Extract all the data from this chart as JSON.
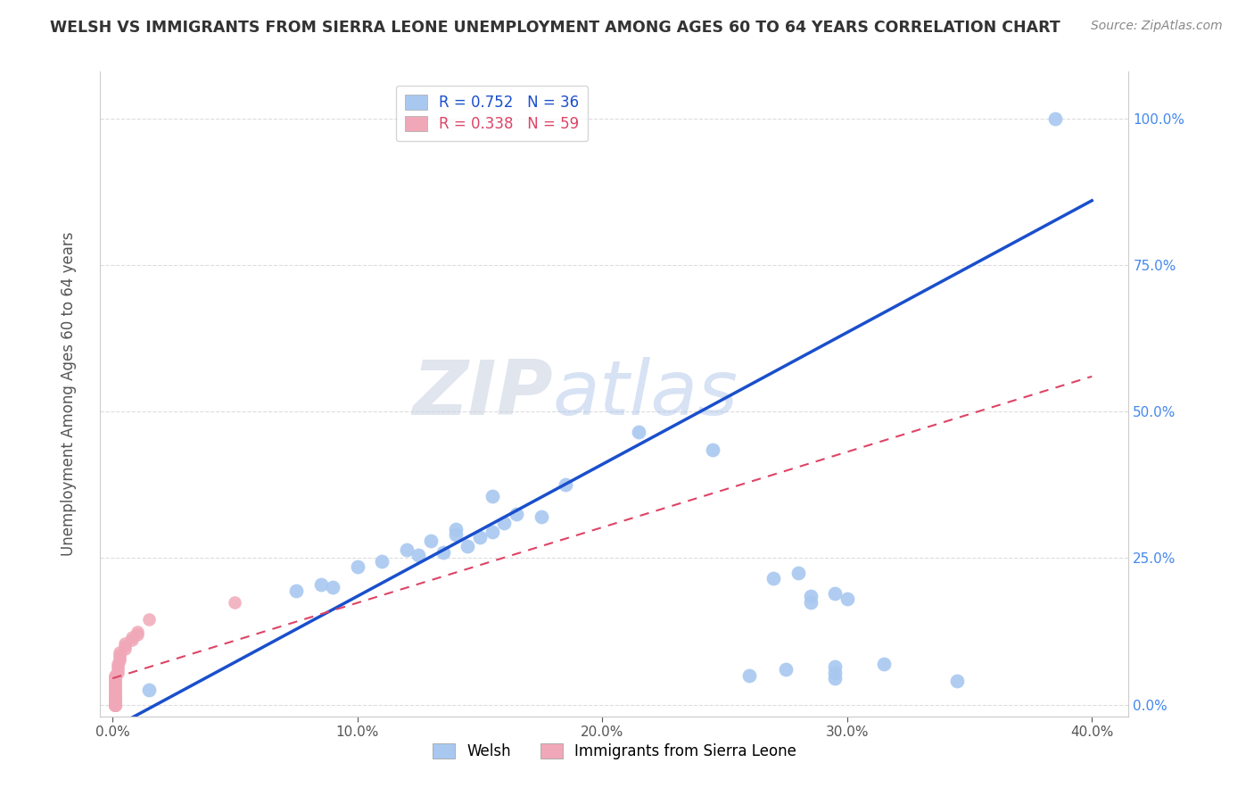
{
  "title": "WELSH VS IMMIGRANTS FROM SIERRA LEONE UNEMPLOYMENT AMONG AGES 60 TO 64 YEARS CORRELATION CHART",
  "source": "Source: ZipAtlas.com",
  "xlabel_ticks": [
    "0.0%",
    "10.0%",
    "20.0%",
    "30.0%",
    "40.0%"
  ],
  "xlabel_tick_vals": [
    0.0,
    0.1,
    0.2,
    0.3,
    0.4
  ],
  "ylabel_ticks": [
    "0.0%",
    "25.0%",
    "50.0%",
    "75.0%",
    "100.0%"
  ],
  "ylabel_tick_vals": [
    0.0,
    0.25,
    0.5,
    0.75,
    1.0
  ],
  "ylabel_label": "Unemployment Among Ages 60 to 64 years",
  "welsh_R": 0.752,
  "welsh_N": 36,
  "sierra_leone_R": 0.338,
  "sierra_leone_N": 59,
  "welsh_color": "#a8c8f0",
  "welsh_line_color": "#1a4fcc",
  "sierra_leone_color": "#f0a8b8",
  "sierra_leone_line_color": "#dd4466",
  "watermark_zip": "ZIP",
  "watermark_atlas": "atlas",
  "welsh_points": [
    [
      0.385,
      1.0
    ],
    [
      0.215,
      0.465
    ],
    [
      0.245,
      0.435
    ],
    [
      0.185,
      0.375
    ],
    [
      0.155,
      0.355
    ],
    [
      0.165,
      0.325
    ],
    [
      0.175,
      0.32
    ],
    [
      0.16,
      0.31
    ],
    [
      0.14,
      0.3
    ],
    [
      0.155,
      0.295
    ],
    [
      0.14,
      0.29
    ],
    [
      0.15,
      0.285
    ],
    [
      0.13,
      0.28
    ],
    [
      0.145,
      0.27
    ],
    [
      0.12,
      0.265
    ],
    [
      0.135,
      0.26
    ],
    [
      0.125,
      0.255
    ],
    [
      0.11,
      0.245
    ],
    [
      0.1,
      0.235
    ],
    [
      0.28,
      0.225
    ],
    [
      0.27,
      0.215
    ],
    [
      0.085,
      0.205
    ],
    [
      0.09,
      0.2
    ],
    [
      0.075,
      0.195
    ],
    [
      0.295,
      0.19
    ],
    [
      0.285,
      0.185
    ],
    [
      0.3,
      0.18
    ],
    [
      0.285,
      0.175
    ],
    [
      0.315,
      0.07
    ],
    [
      0.295,
      0.065
    ],
    [
      0.275,
      0.06
    ],
    [
      0.295,
      0.055
    ],
    [
      0.26,
      0.05
    ],
    [
      0.295,
      0.045
    ],
    [
      0.345,
      0.04
    ],
    [
      0.015,
      0.025
    ]
  ],
  "sierra_leone_points": [
    [
      0.05,
      0.175
    ],
    [
      0.015,
      0.145
    ],
    [
      0.01,
      0.125
    ],
    [
      0.01,
      0.12
    ],
    [
      0.008,
      0.115
    ],
    [
      0.008,
      0.11
    ],
    [
      0.005,
      0.105
    ],
    [
      0.005,
      0.1
    ],
    [
      0.005,
      0.095
    ],
    [
      0.003,
      0.09
    ],
    [
      0.003,
      0.085
    ],
    [
      0.003,
      0.08
    ],
    [
      0.003,
      0.075
    ],
    [
      0.002,
      0.07
    ],
    [
      0.002,
      0.065
    ],
    [
      0.002,
      0.06
    ],
    [
      0.002,
      0.055
    ],
    [
      0.001,
      0.05
    ],
    [
      0.001,
      0.048
    ],
    [
      0.001,
      0.045
    ],
    [
      0.001,
      0.042
    ],
    [
      0.001,
      0.04
    ],
    [
      0.001,
      0.038
    ],
    [
      0.001,
      0.035
    ],
    [
      0.001,
      0.032
    ],
    [
      0.001,
      0.03
    ],
    [
      0.001,
      0.028
    ],
    [
      0.001,
      0.025
    ],
    [
      0.001,
      0.022
    ],
    [
      0.001,
      0.02
    ],
    [
      0.001,
      0.018
    ],
    [
      0.001,
      0.015
    ],
    [
      0.001,
      0.013
    ],
    [
      0.001,
      0.011
    ],
    [
      0.001,
      0.009
    ],
    [
      0.001,
      0.007
    ],
    [
      0.001,
      0.005
    ],
    [
      0.001,
      0.004
    ],
    [
      0.001,
      0.003
    ],
    [
      0.001,
      0.002
    ],
    [
      0.001,
      0.001
    ],
    [
      0.001,
      0.001
    ],
    [
      0.001,
      0.001
    ],
    [
      0.001,
      0.0
    ],
    [
      0.001,
      0.0
    ],
    [
      0.001,
      0.0
    ],
    [
      0.001,
      0.0
    ],
    [
      0.001,
      0.0
    ],
    [
      0.001,
      0.0
    ],
    [
      0.001,
      0.0
    ],
    [
      0.001,
      0.0
    ],
    [
      0.001,
      0.0
    ],
    [
      0.001,
      0.0
    ],
    [
      0.001,
      0.0
    ],
    [
      0.001,
      0.0
    ],
    [
      0.001,
      0.0
    ],
    [
      0.001,
      0.0
    ],
    [
      0.001,
      0.0
    ],
    [
      0.001,
      0.0
    ]
  ],
  "welsh_line": [
    [
      0.0,
      -0.04
    ],
    [
      0.4,
      0.86
    ]
  ],
  "sierra_leone_line": [
    [
      0.0,
      0.045
    ],
    [
      0.4,
      0.56
    ]
  ],
  "xlim": [
    -0.005,
    0.415
  ],
  "ylim": [
    -0.02,
    1.08
  ],
  "right_axis_color": "#4488ee",
  "grid_color": "#dddddd"
}
